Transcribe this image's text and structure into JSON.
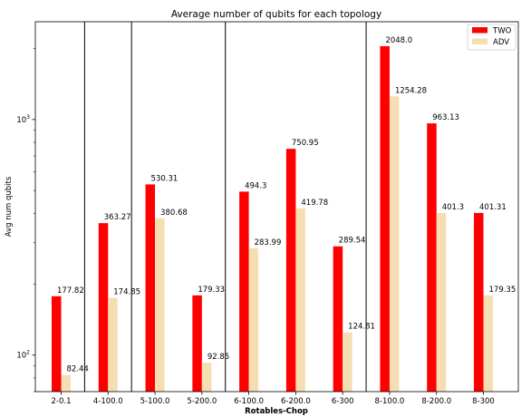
{
  "chart_data": {
    "type": "bar",
    "title": "Average number of qubits for each topology",
    "xlabel": "Rotables-Chop",
    "ylabel": "Avg num qubits",
    "yscale": "log",
    "ylim": [
      70,
      2600
    ],
    "yticks": [
      {
        "value": 100,
        "base": "10",
        "exp": "2"
      },
      {
        "value": 1000,
        "base": "10",
        "exp": "3"
      }
    ],
    "categories": [
      "2-0.1",
      "4-100.0",
      "5-100.0",
      "5-200.0",
      "6-100.0",
      "6-200.0",
      "6-300",
      "8-100.0",
      "8-200.0",
      "8-300"
    ],
    "series": [
      {
        "name": "TWO",
        "color": "#ff0000",
        "values": [
          177.82,
          363.27,
          530.31,
          179.33,
          494.3,
          750.95,
          289.54,
          2048.0,
          963.13,
          401.31
        ],
        "labels": [
          "177.82",
          "363.27",
          "530.31",
          "179.33",
          "494.3",
          "750.95",
          "289.54",
          "2048.0",
          "963.13",
          "401.31"
        ]
      },
      {
        "name": "ADV",
        "color": "#f5deb3",
        "values": [
          82.44,
          174.85,
          380.68,
          92.85,
          283.99,
          419.78,
          124.81,
          1254.28,
          401.3,
          179.35
        ],
        "labels": [
          "82.44",
          "174.85",
          "380.68",
          "92.85",
          "283.99",
          "419.78",
          "124.81",
          "1254.28",
          "401.3",
          "179.35"
        ]
      }
    ],
    "group_separators_after": [
      0,
      1,
      3,
      6
    ],
    "legend": "top-right",
    "grid": false
  }
}
